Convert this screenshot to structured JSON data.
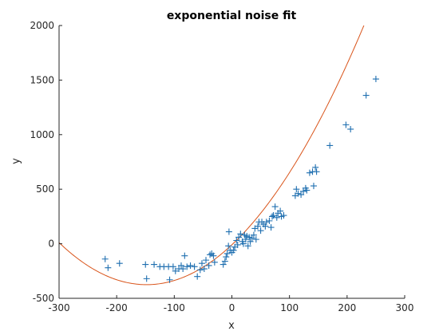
{
  "chart_data": {
    "type": "scatter",
    "title": "exponential noise fit",
    "xlabel": "x",
    "ylabel": "y",
    "xlim": [
      -300,
      300
    ],
    "ylim": [
      -500,
      2000
    ],
    "grid": false,
    "xticks": [
      -300,
      -200,
      -100,
      0,
      100,
      200,
      300
    ],
    "yticks": [
      -500,
      0,
      500,
      1000,
      1500,
      2000
    ],
    "xtick_labels": [
      "-300",
      "-200",
      "-100",
      "0",
      "100",
      "200",
      "300"
    ],
    "ytick_labels": [
      "-500",
      "0",
      "500",
      "1000",
      "1500",
      "2000"
    ],
    "colors": {
      "points": "#1f6fb0",
      "fit": "#d9541a",
      "axes": "#262626"
    },
    "marker": "plus",
    "series": [
      {
        "kind": "scatter",
        "points": [
          [
            -220,
            -140
          ],
          [
            -215,
            -220
          ],
          [
            -195,
            -180
          ],
          [
            -150,
            -190
          ],
          [
            -148,
            -320
          ],
          [
            -135,
            -190
          ],
          [
            -125,
            -210
          ],
          [
            -118,
            -210
          ],
          [
            -110,
            -210
          ],
          [
            -108,
            -330
          ],
          [
            -102,
            -210
          ],
          [
            -98,
            -250
          ],
          [
            -92,
            -230
          ],
          [
            -88,
            -200
          ],
          [
            -85,
            -230
          ],
          [
            -82,
            -110
          ],
          [
            -78,
            -210
          ],
          [
            -72,
            -200
          ],
          [
            -65,
            -210
          ],
          [
            -60,
            -300
          ],
          [
            -55,
            -240
          ],
          [
            -52,
            -180
          ],
          [
            -48,
            -230
          ],
          [
            -45,
            -150
          ],
          [
            -40,
            -200
          ],
          [
            -38,
            -100
          ],
          [
            -35,
            -90
          ],
          [
            -32,
            -110
          ],
          [
            -30,
            -170
          ],
          [
            -15,
            -190
          ],
          [
            -12,
            -160
          ],
          [
            -10,
            -120
          ],
          [
            -8,
            -90
          ],
          [
            -6,
            -20
          ],
          [
            -5,
            110
          ],
          [
            -3,
            -60
          ],
          [
            0,
            -80
          ],
          [
            3,
            -60
          ],
          [
            5,
            -30
          ],
          [
            8,
            30
          ],
          [
            10,
            -10
          ],
          [
            12,
            60
          ],
          [
            15,
            90
          ],
          [
            18,
            20
          ],
          [
            20,
            0
          ],
          [
            22,
            80
          ],
          [
            24,
            40
          ],
          [
            26,
            70
          ],
          [
            28,
            -20
          ],
          [
            30,
            60
          ],
          [
            32,
            20
          ],
          [
            35,
            50
          ],
          [
            38,
            80
          ],
          [
            40,
            140
          ],
          [
            42,
            40
          ],
          [
            45,
            160
          ],
          [
            47,
            200
          ],
          [
            50,
            120
          ],
          [
            52,
            200
          ],
          [
            55,
            180
          ],
          [
            58,
            160
          ],
          [
            60,
            200
          ],
          [
            65,
            210
          ],
          [
            68,
            150
          ],
          [
            70,
            250
          ],
          [
            72,
            260
          ],
          [
            75,
            340
          ],
          [
            78,
            240
          ],
          [
            80,
            280
          ],
          [
            84,
            300
          ],
          [
            86,
            250
          ],
          [
            90,
            260
          ],
          [
            110,
            440
          ],
          [
            112,
            500
          ],
          [
            115,
            460
          ],
          [
            120,
            450
          ],
          [
            124,
            480
          ],
          [
            128,
            510
          ],
          [
            130,
            490
          ],
          [
            135,
            650
          ],
          [
            140,
            660
          ],
          [
            142,
            530
          ],
          [
            145,
            700
          ],
          [
            147,
            660
          ],
          [
            170,
            900
          ],
          [
            198,
            1090
          ],
          [
            206,
            1050
          ],
          [
            233,
            1360
          ],
          [
            250,
            1510
          ]
        ]
      },
      {
        "kind": "line",
        "formula": "y = 0.0167*(x+148)^2 - 375",
        "coefficients": {
          "a": 0.0167,
          "h": -148,
          "k": -375
        }
      }
    ]
  }
}
